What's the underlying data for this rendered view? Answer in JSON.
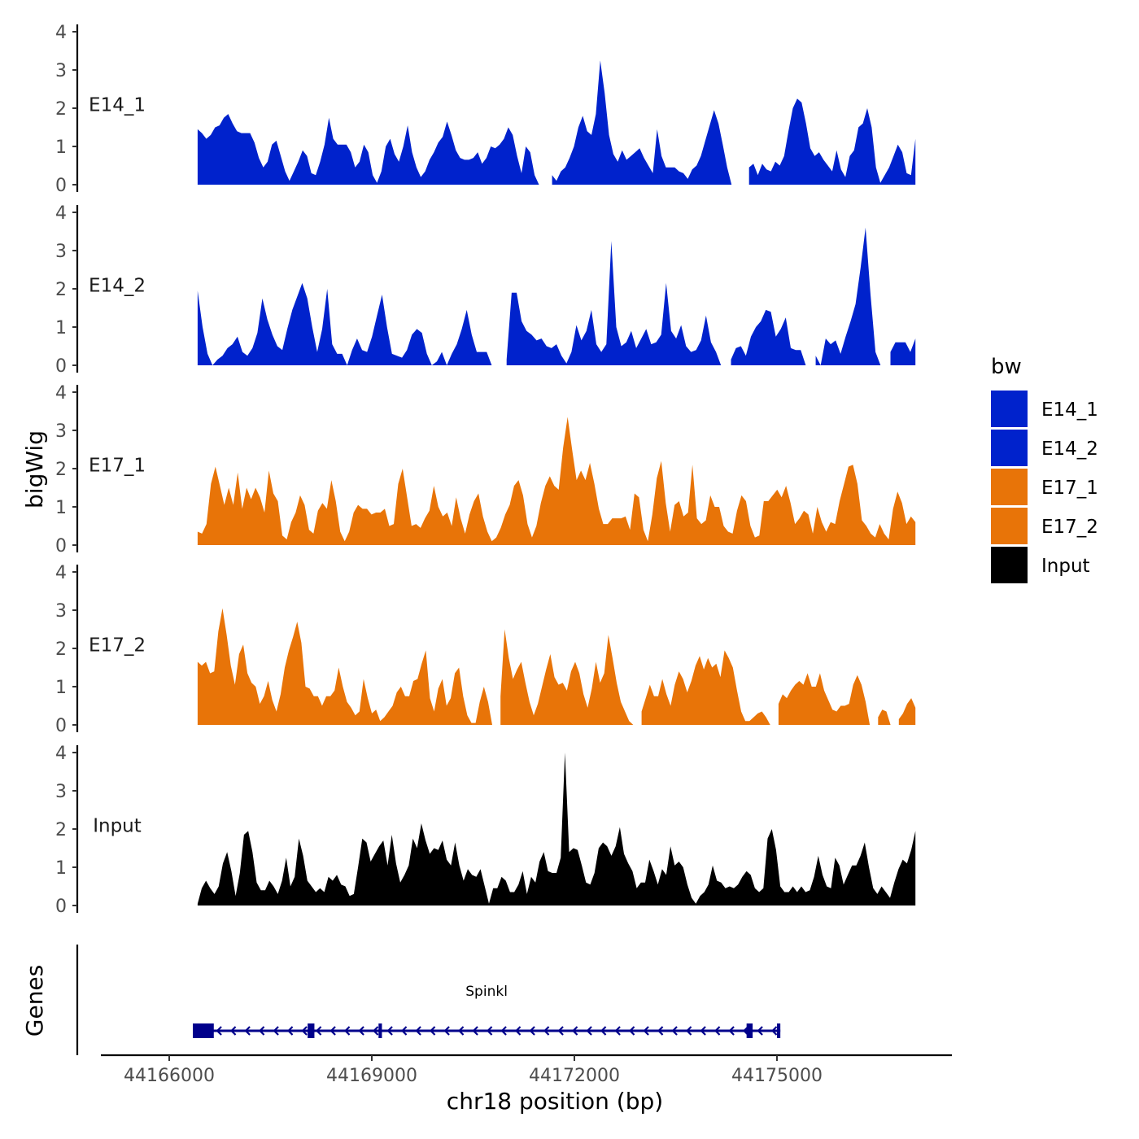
{
  "chart_data": {
    "type": "area",
    "ylabel": "bigWig",
    "xlabel": "chr18 position (bp)",
    "genes_label": "Genes",
    "ylim": [
      0,
      4
    ],
    "yticks": [
      0,
      1,
      2,
      3,
      4
    ],
    "xlim": [
      44165500,
      44177600
    ],
    "xticks": [
      44166000,
      44169000,
      44172000,
      44175000
    ],
    "xtick_labels": [
      "44166000",
      "44169000",
      "44172000",
      "44175000"
    ],
    "legend": {
      "title": "bw",
      "position": "right",
      "items": [
        {
          "label": "E14_1",
          "color": "#0022CC"
        },
        {
          "label": "E14_2",
          "color": "#0022CC"
        },
        {
          "label": "E17_1",
          "color": "#E87408"
        },
        {
          "label": "E17_2",
          "color": "#E87408"
        },
        {
          "label": "Input",
          "color": "#000000"
        }
      ]
    },
    "series": [
      {
        "name": "E14_1",
        "color": "#0022CC",
        "x_start": 44166420,
        "x_end": 44177050,
        "values": [
          1.45,
          1.35,
          1.2,
          1.3,
          1.5,
          1.55,
          1.75,
          1.85,
          1.6,
          1.4,
          1.35,
          1.35,
          1.35,
          1.1,
          0.7,
          0.45,
          0.6,
          1.05,
          1.15,
          0.75,
          0.35,
          0.1,
          0.35,
          0.6,
          0.9,
          0.75,
          0.3,
          0.25,
          0.6,
          1.05,
          1.75,
          1.2,
          1.05,
          1.05,
          1.05,
          0.85,
          0.45,
          0.6,
          1.05,
          0.85,
          0.25,
          0.05,
          0.35,
          1.0,
          1.2,
          0.8,
          0.6,
          1.0,
          1.55,
          0.85,
          0.45,
          0.2,
          0.35,
          0.65,
          0.85,
          1.1,
          1.25,
          1.65,
          1.3,
          0.9,
          0.7,
          0.65,
          0.65,
          0.7,
          0.85,
          0.55,
          0.7,
          1.0,
          0.95,
          1.05,
          1.2,
          1.5,
          1.3,
          0.75,
          0.3,
          1.0,
          0.85,
          0.25,
          0.0,
          null,
          null,
          0.25,
          0.1,
          0.35,
          0.45,
          0.7,
          1.0,
          1.5,
          1.8,
          1.4,
          1.3,
          1.85,
          3.25,
          2.4,
          1.3,
          0.8,
          0.6,
          0.9,
          0.65,
          0.75,
          0.85,
          0.95,
          0.7,
          0.5,
          0.3,
          1.45,
          0.75,
          0.45,
          0.45,
          0.45,
          0.35,
          0.3,
          0.15,
          0.4,
          0.5,
          0.75,
          1.15,
          1.55,
          1.95,
          1.6,
          1.05,
          0.45,
          0.0,
          null,
          null,
          null,
          0.45,
          0.55,
          0.25,
          0.55,
          0.4,
          0.35,
          0.6,
          0.5,
          0.75,
          1.4,
          2.0,
          2.25,
          2.15,
          1.6,
          0.95,
          0.75,
          0.85,
          0.65,
          0.5,
          0.35,
          0.9,
          0.4,
          0.2,
          0.75,
          0.9,
          1.5,
          1.6,
          2.0,
          1.5,
          0.45,
          0.05,
          0.25,
          0.45,
          0.75,
          1.05,
          0.85,
          0.3,
          0.25,
          1.2
        ]
      },
      {
        "name": "E14_2",
        "color": "#0022CC",
        "x_start": 44166420,
        "x_end": 44177050,
        "values": [
          1.95,
          1.0,
          0.3,
          0.0,
          0.15,
          0.25,
          0.45,
          0.55,
          0.75,
          0.35,
          0.25,
          0.45,
          0.85,
          1.75,
          1.2,
          0.8,
          0.5,
          0.4,
          0.95,
          1.45,
          1.8,
          2.15,
          1.75,
          1.0,
          0.35,
          0.95,
          2.0,
          0.55,
          0.3,
          0.3,
          0.0,
          0.4,
          0.7,
          0.4,
          0.35,
          0.75,
          1.3,
          1.85,
          1.0,
          0.3,
          0.25,
          0.2,
          0.4,
          0.8,
          0.95,
          0.85,
          0.3,
          0.0,
          0.1,
          0.35,
          0.0,
          0.3,
          0.55,
          0.95,
          1.45,
          0.8,
          0.35,
          0.35,
          0.35,
          0.0,
          null,
          null,
          0.15,
          1.9,
          1.9,
          1.15,
          0.9,
          0.8,
          0.65,
          0.7,
          0.5,
          0.45,
          0.55,
          0.25,
          0.05,
          0.35,
          1.05,
          0.65,
          0.9,
          1.45,
          0.55,
          0.35,
          0.55,
          3.25,
          1.0,
          0.5,
          0.6,
          0.9,
          0.45,
          0.7,
          0.95,
          0.55,
          0.6,
          0.8,
          2.15,
          0.9,
          0.7,
          1.05,
          0.5,
          0.35,
          0.4,
          0.65,
          1.3,
          0.6,
          0.35,
          0.0,
          null,
          0.15,
          0.45,
          0.5,
          0.25,
          0.75,
          1.0,
          1.15,
          1.45,
          1.4,
          0.75,
          0.95,
          1.25,
          0.45,
          0.4,
          0.4,
          0.0,
          null,
          0.25,
          0.0,
          0.7,
          0.55,
          0.65,
          0.3,
          0.75,
          1.15,
          1.6,
          2.55,
          3.6,
          1.85,
          0.35,
          0.0,
          null,
          0.35,
          0.6,
          0.6,
          0.6,
          0.35,
          0.7
        ]
      },
      {
        "name": "E17_1",
        "color": "#E87408",
        "x_start": 44166420,
        "x_end": 44177050,
        "values": [
          0.35,
          0.3,
          0.55,
          1.6,
          2.05,
          1.55,
          1.05,
          1.5,
          1.05,
          1.9,
          0.95,
          1.5,
          1.2,
          1.5,
          1.25,
          0.85,
          1.95,
          1.35,
          1.15,
          0.25,
          0.15,
          0.6,
          0.85,
          1.3,
          1.05,
          0.4,
          0.3,
          0.9,
          1.1,
          0.95,
          1.7,
          1.15,
          0.35,
          0.1,
          0.35,
          0.85,
          1.05,
          0.95,
          0.95,
          0.8,
          0.85,
          0.85,
          0.95,
          0.5,
          0.55,
          1.6,
          2.0,
          1.25,
          0.5,
          0.55,
          0.45,
          0.7,
          0.9,
          1.55,
          1.0,
          0.75,
          0.85,
          0.5,
          1.25,
          0.7,
          0.3,
          0.8,
          1.15,
          1.35,
          0.75,
          0.35,
          0.1,
          0.2,
          0.45,
          0.8,
          1.05,
          1.55,
          1.7,
          1.3,
          0.55,
          0.2,
          0.5,
          1.1,
          1.55,
          1.8,
          1.55,
          1.45,
          2.55,
          3.35,
          2.5,
          1.7,
          1.95,
          1.7,
          2.15,
          1.6,
          0.95,
          0.55,
          0.55,
          0.7,
          0.7,
          0.7,
          0.75,
          0.4,
          1.35,
          1.25,
          0.4,
          0.1,
          0.8,
          1.75,
          2.2,
          1.1,
          0.35,
          1.05,
          1.15,
          0.75,
          0.85,
          2.1,
          0.7,
          0.55,
          0.65,
          1.3,
          1.0,
          1.0,
          0.5,
          0.35,
          0.3,
          0.9,
          1.3,
          1.15,
          0.5,
          0.2,
          0.25,
          1.15,
          1.15,
          1.3,
          1.45,
          1.25,
          1.55,
          1.1,
          0.55,
          0.7,
          0.9,
          0.8,
          0.3,
          1.0,
          0.6,
          0.35,
          0.6,
          0.55,
          1.15,
          1.6,
          2.05,
          2.1,
          1.6,
          0.65,
          0.5,
          0.3,
          0.2,
          0.55,
          0.3,
          0.15,
          0.95,
          1.4,
          1.1,
          0.55,
          0.75,
          0.6
        ]
      },
      {
        "name": "E17_2",
        "color": "#E87408",
        "x_start": 44166420,
        "x_end": 44177050,
        "values": [
          1.65,
          1.55,
          1.65,
          1.35,
          1.4,
          2.45,
          3.05,
          2.35,
          1.55,
          1.05,
          1.85,
          2.1,
          1.35,
          1.1,
          1.0,
          0.55,
          0.75,
          1.15,
          0.65,
          0.35,
          0.8,
          1.5,
          1.95,
          2.3,
          2.7,
          2.15,
          1.0,
          0.95,
          0.75,
          0.75,
          0.5,
          0.75,
          0.75,
          0.9,
          1.5,
          1.0,
          0.6,
          0.45,
          0.25,
          0.35,
          1.2,
          0.7,
          0.3,
          0.4,
          0.1,
          0.2,
          0.35,
          0.5,
          0.85,
          1.0,
          0.75,
          0.75,
          1.15,
          1.2,
          1.6,
          1.95,
          0.7,
          0.35,
          0.95,
          1.2,
          0.5,
          0.7,
          1.35,
          1.5,
          0.75,
          0.25,
          0.05,
          0.05,
          0.6,
          1.0,
          0.6,
          0.0,
          null,
          0.75,
          2.5,
          1.75,
          1.2,
          1.45,
          1.65,
          1.1,
          0.6,
          0.25,
          0.55,
          1.0,
          1.45,
          1.85,
          1.25,
          1.05,
          1.1,
          0.9,
          1.4,
          1.65,
          1.35,
          0.8,
          0.45,
          0.95,
          1.65,
          1.1,
          1.35,
          2.35,
          1.75,
          1.1,
          0.6,
          0.35,
          0.1,
          0.0,
          null,
          0.35,
          0.7,
          1.05,
          0.75,
          0.75,
          1.2,
          0.8,
          0.5,
          1.05,
          1.4,
          1.2,
          0.85,
          1.15,
          1.55,
          1.8,
          1.45,
          1.75,
          1.5,
          1.6,
          1.25,
          1.95,
          1.75,
          1.5,
          0.9,
          0.35,
          0.1,
          0.1,
          0.2,
          0.3,
          0.35,
          0.2,
          0.0,
          null,
          0.55,
          0.8,
          0.7,
          0.9,
          1.05,
          1.15,
          1.05,
          1.35,
          1.0,
          1.0,
          1.35,
          0.9,
          0.65,
          0.4,
          0.35,
          0.5,
          0.5,
          0.55,
          1.05,
          1.3,
          1.05,
          0.6,
          0.0,
          null,
          0.2,
          0.4,
          0.35,
          0.0,
          null,
          0.15,
          0.3,
          0.55,
          0.7,
          0.45
        ]
      },
      {
        "name": "Input",
        "color": "#000000",
        "x_start": 44166420,
        "x_end": 44177050,
        "values": [
          0.05,
          0.45,
          0.65,
          0.45,
          0.3,
          0.5,
          1.1,
          1.4,
          0.9,
          0.25,
          0.85,
          1.85,
          1.95,
          1.4,
          0.6,
          0.4,
          0.4,
          0.65,
          0.5,
          0.3,
          0.65,
          1.25,
          0.5,
          0.75,
          1.75,
          1.3,
          0.65,
          0.5,
          0.35,
          0.45,
          0.35,
          0.75,
          0.65,
          0.8,
          0.55,
          0.5,
          0.25,
          0.3,
          1.0,
          1.75,
          1.65,
          1.15,
          1.35,
          1.55,
          1.7,
          1.05,
          1.85,
          1.1,
          0.6,
          0.8,
          1.05,
          1.75,
          1.5,
          2.15,
          1.7,
          1.35,
          1.5,
          1.45,
          1.7,
          1.2,
          1.05,
          1.65,
          1.05,
          0.65,
          0.95,
          0.8,
          0.75,
          0.95,
          0.5,
          0.05,
          0.45,
          0.45,
          0.75,
          0.65,
          0.35,
          0.35,
          0.55,
          0.9,
          0.3,
          0.75,
          0.6,
          1.15,
          1.4,
          0.9,
          0.85,
          0.85,
          1.25,
          4.0,
          1.4,
          1.5,
          1.45,
          1.05,
          0.6,
          0.55,
          0.85,
          1.5,
          1.65,
          1.55,
          1.3,
          1.55,
          2.05,
          1.35,
          1.1,
          0.9,
          0.45,
          0.6,
          0.6,
          1.2,
          0.9,
          0.55,
          0.95,
          0.8,
          1.55,
          1.05,
          1.15,
          1.0,
          0.55,
          0.2,
          0.05,
          0.25,
          0.35,
          0.55,
          1.05,
          0.65,
          0.6,
          0.45,
          0.5,
          0.45,
          0.55,
          0.75,
          0.9,
          0.8,
          0.45,
          0.35,
          0.45,
          1.75,
          2.0,
          1.45,
          0.5,
          0.35,
          0.35,
          0.5,
          0.35,
          0.5,
          0.35,
          0.4,
          0.75,
          1.3,
          0.8,
          0.5,
          0.45,
          1.25,
          1.05,
          0.55,
          0.8,
          1.05,
          1.05,
          1.3,
          1.65,
          1.0,
          0.45,
          0.3,
          0.5,
          0.35,
          0.2,
          0.6,
          0.95,
          1.2,
          1.1,
          1.45,
          1.95
        ]
      }
    ],
    "genes": [
      {
        "name": "Spinkl",
        "strand": "-",
        "color": "#00008B",
        "start": 44166350,
        "end": 44175050,
        "exons": [
          [
            44166350,
            44166660
          ],
          [
            44168050,
            44168150
          ],
          [
            44169100,
            44169150
          ],
          [
            44174550,
            44174640
          ],
          [
            44175000,
            44175050
          ]
        ]
      }
    ]
  }
}
